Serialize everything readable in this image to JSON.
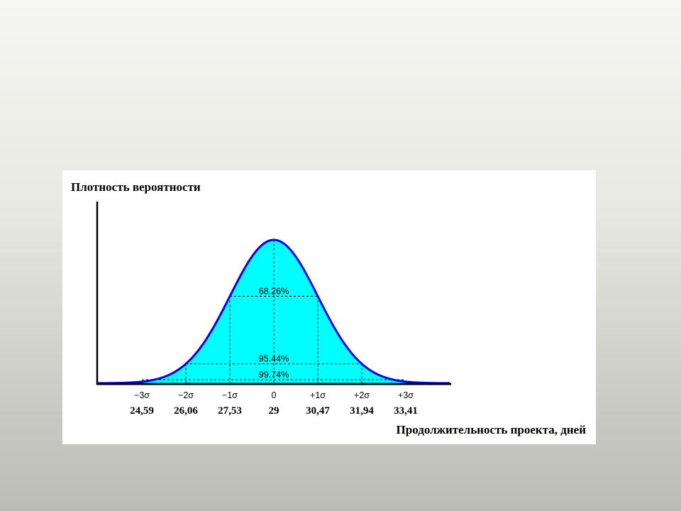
{
  "chart_data": {
    "type": "area",
    "title": "Плотность вероятности",
    "xlabel": "Продолжительность проекта, дней",
    "ylabel": "",
    "distribution": "normal",
    "mean": 29,
    "sigma": 1.47,
    "sigma_ticks": [
      "−3σ",
      "−2σ",
      "−1σ",
      "0",
      "+1σ",
      "+2σ",
      "+3σ"
    ],
    "sigma_multiples": [
      -3,
      -2,
      -1,
      0,
      1,
      2,
      3
    ],
    "value_ticks": [
      "24,59",
      "26,06",
      "27,53",
      "29",
      "30,47",
      "31,94",
      "33,41"
    ],
    "intervals": [
      {
        "label": "68.26%",
        "from_sigma": -1,
        "to_sigma": 1
      },
      {
        "label": "95.44%",
        "from_sigma": -2,
        "to_sigma": 2
      },
      {
        "label": "99.74%",
        "from_sigma": -3,
        "to_sigma": 3
      }
    ],
    "fill_color": "#00ffff",
    "curve_color": "#0000ff",
    "grid": false
  }
}
